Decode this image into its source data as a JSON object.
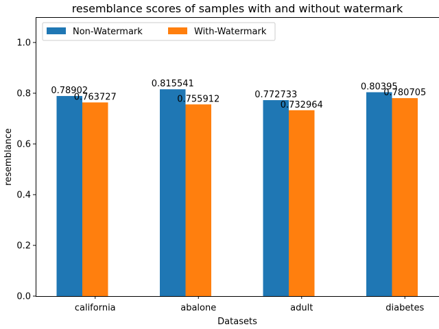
{
  "chart_data": {
    "type": "bar",
    "title": "resemblance scores of samples with and without watermark",
    "xlabel": "Datasets",
    "ylabel": "resemblance",
    "categories": [
      "california",
      "abalone",
      "adult",
      "diabetes"
    ],
    "series": [
      {
        "name": "Non-Watermark",
        "color": "#1f77b4",
        "values": [
          0.78902,
          0.815541,
          0.772733,
          0.80395
        ],
        "labels": [
          "0.78902",
          "0.815541",
          "0.772733",
          "0.80395"
        ]
      },
      {
        "name": "With-Watermark",
        "color": "#ff7f0e",
        "values": [
          0.763727,
          0.755912,
          0.732964,
          0.780705
        ],
        "labels": [
          "0.763727",
          "0.755912",
          "0.732964",
          "0.780705"
        ]
      }
    ],
    "ylim": [
      0,
      1.1
    ],
    "yticks": [
      0.0,
      0.2,
      0.4,
      0.6,
      0.8,
      1.0
    ],
    "ytick_labels": [
      "0.0",
      "0.2",
      "0.4",
      "0.6",
      "0.8",
      "1.0"
    ],
    "grid": false,
    "legend_position": "top-left"
  }
}
